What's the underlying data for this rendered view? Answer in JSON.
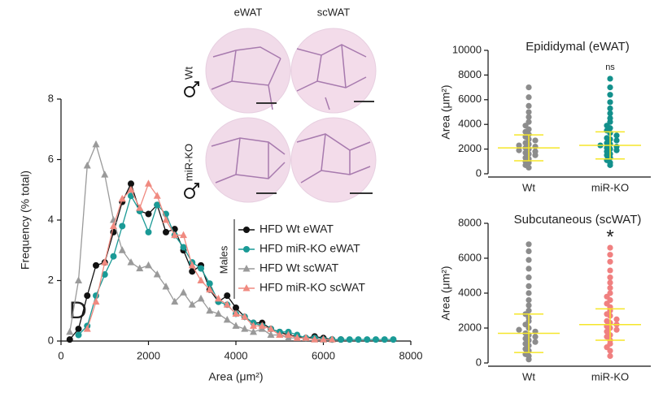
{
  "panel_label": "D",
  "images": {
    "columns": [
      "eWAT",
      "scWAT"
    ],
    "rows": [
      "Wt",
      "miR-KO"
    ]
  },
  "chart_data": [
    {
      "type": "line",
      "ylabel": "Frequency (% total)",
      "xlabel": "Area (μm²)",
      "legend_title": "Males",
      "x": [
        200,
        400,
        600,
        800,
        1000,
        1200,
        1400,
        1600,
        1800,
        2000,
        2200,
        2400,
        2600,
        2800,
        3000,
        3200,
        3400,
        3600,
        3800,
        4000,
        4200,
        4400,
        4600,
        4800,
        5000,
        5200,
        5400,
        5600,
        5800,
        6000,
        6200,
        6400,
        6600,
        6800,
        7000,
        7200,
        7400,
        7600
      ],
      "xlim": [
        0,
        8000
      ],
      "xticks": [
        0,
        2000,
        4000,
        6000,
        8000
      ],
      "ylim": [
        0,
        8
      ],
      "yticks": [
        0,
        2,
        4,
        6,
        8
      ],
      "series": [
        {
          "name": "HFD Wt eWAT",
          "color": "#111111",
          "marker": "circle",
          "values": [
            0.05,
            0.4,
            1.5,
            2.5,
            2.6,
            3.6,
            4.6,
            5.2,
            4.3,
            4.2,
            4.5,
            3.6,
            3.7,
            3.0,
            2.3,
            2.5,
            1.7,
            1.3,
            1.5,
            1.1,
            0.8,
            0.6,
            0.6,
            0.4,
            0.3,
            0.2,
            0.15,
            0.1,
            0.15,
            0.1,
            0.05,
            0.05,
            null,
            null,
            null,
            null,
            null,
            null
          ]
        },
        {
          "name": "HFD miR-KO eWAT",
          "color": "#1a9a96",
          "marker": "circle",
          "values": [
            null,
            0.2,
            0.5,
            1.5,
            2.2,
            2.8,
            3.8,
            4.8,
            4.3,
            3.6,
            4.5,
            4.2,
            3.5,
            3.1,
            2.6,
            2.4,
            1.9,
            1.3,
            1.2,
            0.9,
            0.8,
            0.6,
            0.5,
            0.4,
            0.3,
            0.3,
            0.2,
            0.1,
            0.1,
            0.05,
            0.05,
            0.05,
            0.05,
            0.05,
            0.05,
            0.05,
            0.05,
            0.05
          ]
        },
        {
          "name": "HFD Wt scWAT",
          "color": "#9a9a9a",
          "marker": "triangle",
          "values": [
            0.3,
            2.0,
            5.8,
            6.5,
            5.5,
            4.0,
            3.0,
            2.6,
            2.4,
            2.5,
            2.2,
            1.8,
            1.3,
            1.6,
            1.2,
            1.4,
            1.0,
            0.9,
            0.7,
            0.5,
            0.4,
            0.3,
            0.4,
            0.2,
            0.2,
            0.1,
            0.1,
            0.1,
            0.05,
            0.05,
            null,
            null,
            null,
            null,
            null,
            null,
            null,
            null
          ]
        },
        {
          "name": "HFD miR-KO scWAT",
          "color": "#f08a80",
          "marker": "triangle",
          "values": [
            null,
            null,
            0.4,
            1.3,
            2.6,
            3.8,
            4.7,
            5.0,
            4.4,
            5.2,
            4.8,
            4.0,
            3.5,
            3.5,
            2.5,
            2.0,
            1.7,
            1.4,
            1.2,
            0.9,
            0.8,
            0.5,
            0.5,
            0.4,
            0.2,
            0.2,
            0.1,
            0.1,
            0.05,
            0.05,
            0.05,
            null,
            null,
            null,
            null,
            null,
            null,
            null
          ]
        }
      ]
    },
    {
      "type": "swarm",
      "title": "Epididymal (eWAT)",
      "ylabel": "Area (μm²)",
      "categories": [
        "Wt",
        "miR-KO"
      ],
      "ylim": [
        0,
        10000
      ],
      "yticks": [
        0,
        2000,
        4000,
        6000,
        8000,
        10000
      ],
      "annotation": "ns",
      "groups": [
        {
          "color": "#8c8c8c",
          "mean": 2100,
          "error": 1050,
          "values": [
            500,
            700,
            900,
            1000,
            1200,
            1300,
            1500,
            1600,
            1700,
            1800,
            1900,
            2000,
            2100,
            2200,
            2300,
            2400,
            2500,
            2700,
            2800,
            3000,
            3200,
            3400,
            3600,
            3900,
            4200,
            4600,
            5000,
            5500,
            6200,
            7000
          ]
        },
        {
          "color": "#13908c",
          "mean": 2300,
          "error": 1100,
          "values": [
            700,
            900,
            1100,
            1300,
            1500,
            1600,
            1800,
            1900,
            2000,
            2100,
            2200,
            2300,
            2400,
            2500,
            2700,
            2800,
            2900,
            3100,
            3300,
            3500,
            3700,
            3900,
            4200,
            4500,
            4900,
            5300,
            5800,
            6400,
            7000,
            7700
          ]
        }
      ]
    },
    {
      "type": "swarm",
      "title": "Subcutaneous (scWAT)",
      "ylabel": "Area (μm²)",
      "categories": [
        "Wt",
        "miR-KO"
      ],
      "ylim": [
        0,
        8000
      ],
      "yticks": [
        0,
        2000,
        4000,
        6000,
        8000
      ],
      "annotation": "*",
      "groups": [
        {
          "color": "#8c8c8c",
          "mean": 1700,
          "error": 1100,
          "values": [
            200,
            400,
            500,
            700,
            800,
            1000,
            1100,
            1200,
            1300,
            1400,
            1500,
            1600,
            1700,
            1800,
            1900,
            2000,
            2200,
            2400,
            2600,
            2800,
            3000,
            3300,
            3600,
            4000,
            4400,
            4900,
            5400,
            5900,
            6400,
            6800
          ]
        },
        {
          "color": "#f08080",
          "mean": 2200,
          "error": 900,
          "values": [
            400,
            700,
            900,
            1100,
            1300,
            1500,
            1600,
            1800,
            1900,
            2000,
            2100,
            2200,
            2300,
            2400,
            2500,
            2700,
            2800,
            3000,
            3200,
            3400,
            3600,
            3800,
            4000,
            4300,
            4600,
            4900,
            5300,
            5800,
            6200,
            6600
          ]
        }
      ]
    }
  ]
}
